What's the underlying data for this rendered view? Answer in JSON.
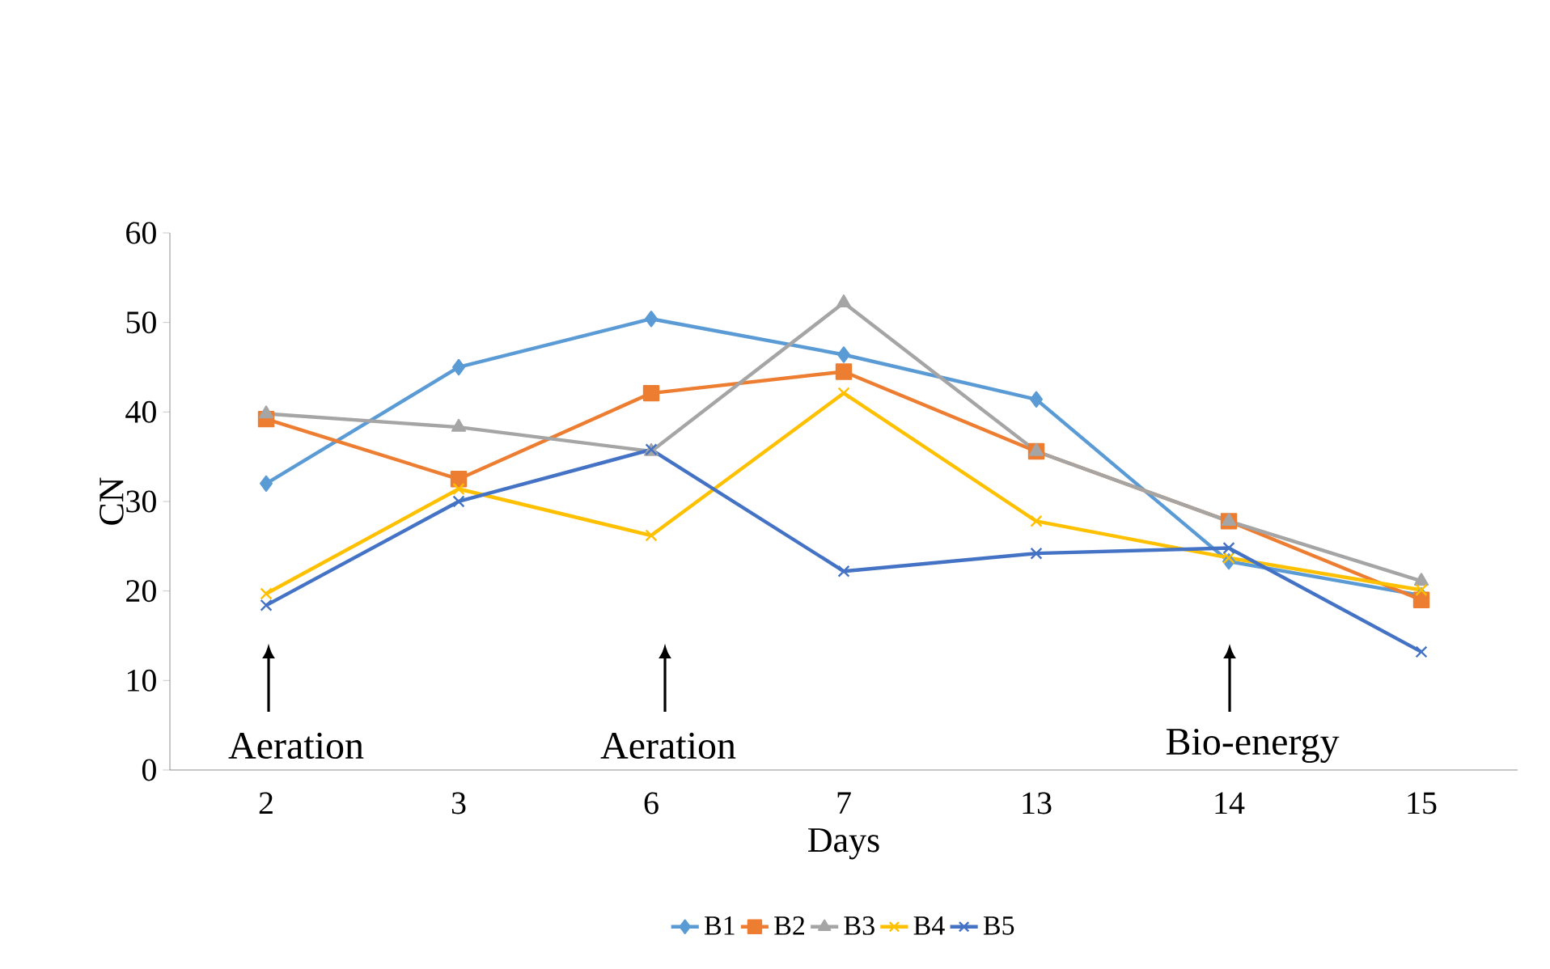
{
  "chart_data": {
    "type": "line",
    "xlabel": "Days",
    "ylabel": "CN",
    "categories": [
      "2",
      "3",
      "6",
      "7",
      "13",
      "14",
      "15"
    ],
    "ylim": [
      0,
      60
    ],
    "yticks": [
      0,
      10,
      20,
      30,
      40,
      50,
      60
    ],
    "grid": false,
    "legend": "bottom",
    "series": [
      {
        "name": "B1",
        "color": "#5b9bd5",
        "marker": "diamond",
        "values": [
          32,
          45,
          50.4,
          46.4,
          41.4,
          23.3,
          19.5
        ]
      },
      {
        "name": "B2",
        "color": "#ed7d31",
        "marker": "square",
        "values": [
          39.2,
          32.5,
          42.1,
          44.5,
          35.6,
          27.8,
          19
        ]
      },
      {
        "name": "B3",
        "color": "#a5a5a5",
        "marker": "triangle",
        "values": [
          39.8,
          38.3,
          35.6,
          52.2,
          35.6,
          27.8,
          21.1
        ]
      },
      {
        "name": "B4",
        "color": "#ffc000",
        "marker": "cross",
        "values": [
          19.7,
          31.4,
          26.2,
          42.1,
          27.8,
          23.7,
          20.1
        ]
      },
      {
        "name": "B5",
        "color": "#4472c4",
        "marker": "cross",
        "values": [
          18.4,
          30,
          35.8,
          22.2,
          24.2,
          24.8,
          13.2
        ]
      }
    ],
    "annotations": [
      "Aeration",
      "Aeration",
      "Bio-energy"
    ]
  }
}
